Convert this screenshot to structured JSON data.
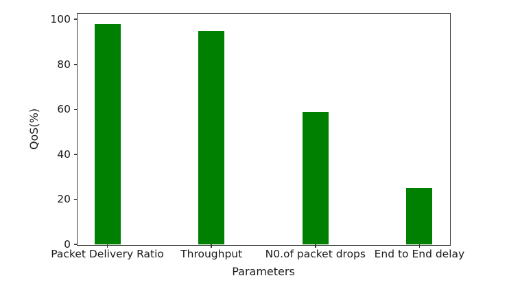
{
  "chart_data": {
    "type": "bar",
    "title": "",
    "xlabel": "Parameters",
    "ylabel": "QoS(%)",
    "categories": [
      "Packet Delivery Ratio",
      "Throughput",
      "N0.of packet drops",
      "End to End delay"
    ],
    "values": [
      98,
      95,
      59,
      25
    ],
    "yticks": [
      0,
      20,
      40,
      60,
      80,
      100
    ],
    "ylim": [
      0,
      102.5
    ],
    "xlim_pad_units": 0.2875,
    "bar_width_units": 0.25,
    "grid": false,
    "legend": "none",
    "bar_color": "#008000"
  },
  "colors": {
    "bar": "#008000",
    "spine": "#3b3b3b",
    "text": "#1b1b1b",
    "background": "#ffffff"
  }
}
